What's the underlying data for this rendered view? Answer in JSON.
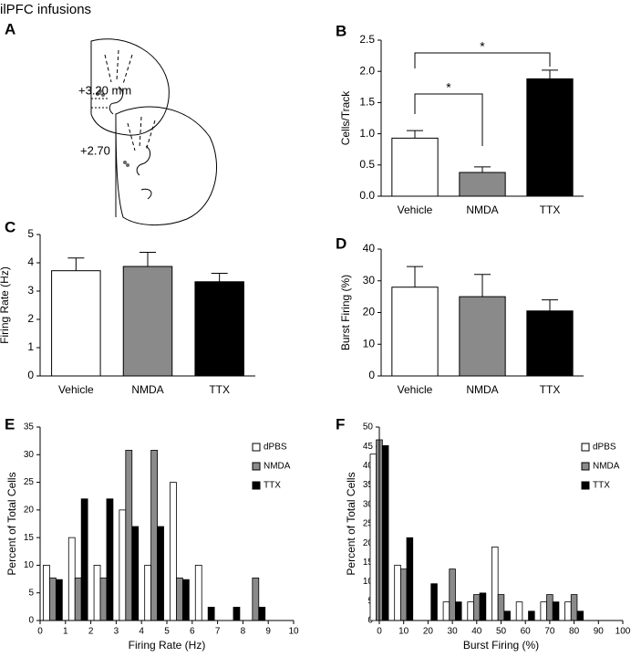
{
  "title": "ilPFC infusions",
  "diagram": {
    "panel": "A",
    "labels": [
      "+3.20 mm",
      "+2.70"
    ]
  },
  "chart_data": [
    {
      "type": "bar",
      "panel": "B",
      "y_label": "Cells/Track",
      "categories": [
        "Vehicle",
        "NMDA",
        "TTX"
      ],
      "values": [
        0.93,
        0.38,
        1.88
      ],
      "errors": [
        0.12,
        0.09,
        0.14
      ],
      "colors": [
        "#ffffff",
        "#8a8a8a",
        "#000000"
      ],
      "annotations": [
        "*",
        "*"
      ],
      "ylim": [
        0,
        2.5
      ],
      "yticks": [
        {
          "value": 0,
          "label": "0.0"
        },
        0.5,
        {
          "value": 1,
          "label": "1.0"
        },
        1.5,
        {
          "value": 2,
          "label": "2.0"
        },
        2.5
      ]
    },
    {
      "type": "bar",
      "panel": "C",
      "y_label": "Firing Rate (Hz)",
      "categories": [
        "Vehicle",
        "NMDA",
        "TTX"
      ],
      "values": [
        3.72,
        3.87,
        3.33
      ],
      "errors": [
        0.45,
        0.5,
        0.3
      ],
      "colors": [
        "#ffffff",
        "#8a8a8a",
        "#000000"
      ],
      "ylim": [
        0,
        5
      ],
      "yticks": [
        0,
        1,
        2,
        3,
        4,
        5
      ]
    },
    {
      "type": "bar",
      "panel": "D",
      "y_label": "Burst Firing (%)",
      "categories": [
        "Vehicle",
        "NMDA",
        "TTX"
      ],
      "values": [
        28,
        25,
        20.5
      ],
      "errors": [
        6.5,
        7,
        3.5
      ],
      "colors": [
        "#ffffff",
        "#8a8a8a",
        "#000000"
      ],
      "ylim": [
        0,
        40
      ],
      "yticks": [
        0,
        10,
        20,
        30,
        40
      ]
    },
    {
      "type": "groupedbar",
      "panel": "E",
      "y_label": "Percent of Total Cells",
      "x_label": "Firing Rate (Hz)",
      "x": [
        0.5,
        1.5,
        2.5,
        3.5,
        4.5,
        5.5,
        6.5,
        7.5,
        8.5
      ],
      "series": [
        {
          "name": "dPBS",
          "color": "#ffffff",
          "values": [
            10,
            15,
            10,
            20,
            10,
            25,
            10,
            0,
            0
          ]
        },
        {
          "name": "NMDA",
          "color": "#8a8a8a",
          "values": [
            7.7,
            7.7,
            7.7,
            30.8,
            30.8,
            7.7,
            0,
            0,
            7.7
          ]
        },
        {
          "name": "TTX",
          "color": "#000000",
          "values": [
            7.4,
            22,
            22,
            17,
            17,
            7.4,
            2.4,
            2.4,
            2.4
          ]
        }
      ],
      "legend": "upper right",
      "xlim": [
        0,
        10
      ],
      "xticks": [
        0,
        1,
        2,
        3,
        4,
        5,
        6,
        7,
        8,
        9,
        10
      ],
      "ylim": [
        0,
        35
      ],
      "yticks": [
        0,
        5,
        10,
        15,
        20,
        25,
        30,
        35
      ]
    },
    {
      "type": "groupedbar",
      "panel": "F",
      "y_label": "Percent of Total Cells",
      "x_label": "Burst Firing (%)",
      "x": [
        0,
        10,
        20,
        30,
        40,
        50,
        60,
        70,
        80
      ],
      "series": [
        {
          "name": "dPBS",
          "color": "#ffffff",
          "values": [
            43,
            14.3,
            0,
            4.8,
            4.8,
            19,
            4.8,
            4.8,
            4.8
          ]
        },
        {
          "name": "NMDA",
          "color": "#8a8a8a",
          "values": [
            46.7,
            13.3,
            0,
            13.3,
            6.7,
            6.7,
            0,
            6.7,
            6.7
          ]
        },
        {
          "name": "TTX",
          "color": "#000000",
          "values": [
            45.2,
            21.4,
            9.5,
            4.8,
            7.1,
            2.4,
            2.4,
            4.8,
            2.4
          ]
        }
      ],
      "legend": "upper right",
      "xlim": [
        0,
        100
      ],
      "xticks": [
        0,
        10,
        20,
        30,
        40,
        50,
        60,
        70,
        80,
        90,
        100
      ],
      "ylim": [
        0,
        50
      ],
      "yticks": [
        0,
        5,
        10,
        15,
        20,
        25,
        30,
        35,
        40,
        45,
        50
      ]
    }
  ]
}
